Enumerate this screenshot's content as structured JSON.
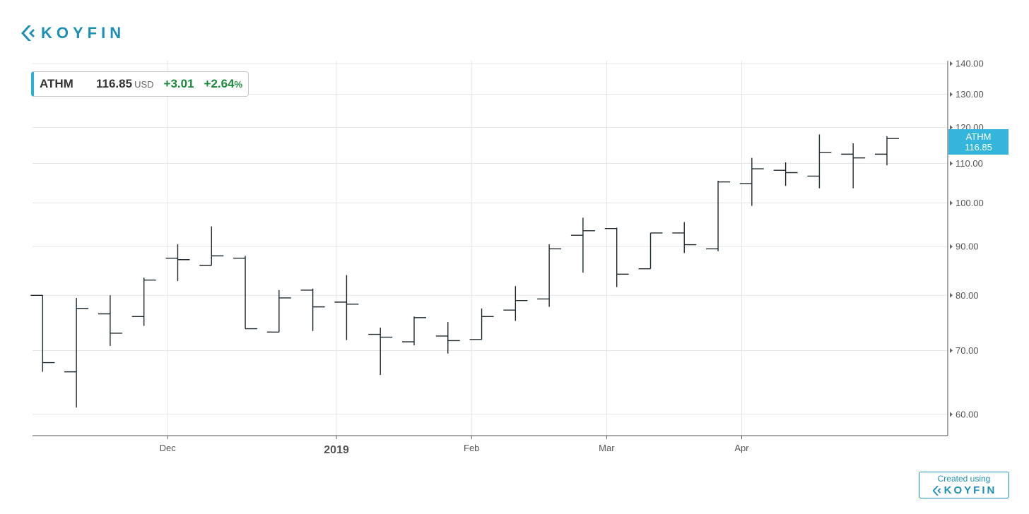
{
  "brand": {
    "name": "KOYFIN",
    "color": "#1c8fb5",
    "icon": "koyfin-chevron-icon"
  },
  "quote": {
    "symbol": "ATHM",
    "price": "116.85",
    "currency": "USD",
    "change": "+3.01",
    "change_pct": "+2.64",
    "pct_sign": "%"
  },
  "price_tag": {
    "symbol": "ATHM",
    "value": "116.85"
  },
  "footer": {
    "created_using": "Created using",
    "brand": "KOYFIN"
  },
  "colors": {
    "bars": "#1f2a30",
    "grid": "#e6e6e6",
    "accent": "#33b5dc",
    "positive": "#1c8a3c"
  },
  "chart_data": {
    "type": "ohlc",
    "frequency": "weekly",
    "y_scale": "log",
    "ylim": [
      57,
      141
    ],
    "y_ticks": [
      "60.00",
      "70.00",
      "80.00",
      "90.00",
      "100.00",
      "110.00",
      "120.00",
      "130.00",
      "140.00"
    ],
    "y_tick_values": [
      60,
      70,
      80,
      90,
      100,
      110,
      120,
      130,
      140
    ],
    "x_ticks": [
      {
        "label": "Dec",
        "x": 4.2,
        "bold": false
      },
      {
        "label": "2019",
        "x": 9.2,
        "bold": true
      },
      {
        "label": "Feb",
        "x": 13.2,
        "bold": false
      },
      {
        "label": "Mar",
        "x": 17.2,
        "bold": false
      },
      {
        "label": "Apr",
        "x": 21.2,
        "bold": false
      }
    ],
    "xlim": [
      0.2,
      27.3
    ],
    "grid": true,
    "bars": [
      {
        "o": 80,
        "h": 80,
        "l": 66.5,
        "c": 68
      },
      {
        "o": 66.5,
        "h": 79.5,
        "l": 61,
        "c": 77.5
      },
      {
        "o": 76.5,
        "h": 80,
        "l": 70.8,
        "c": 73
      },
      {
        "o": 76,
        "h": 83.5,
        "l": 74.3,
        "c": 83
      },
      {
        "o": 87.5,
        "h": 90.5,
        "l": 82.8,
        "c": 87.2
      },
      {
        "o": 86,
        "h": 94.5,
        "l": 86,
        "c": 88
      },
      {
        "o": 87.5,
        "h": 88,
        "l": 73.8,
        "c": 73.8
      },
      {
        "o": 73.2,
        "h": 81,
        "l": 73.2,
        "c": 79.5
      },
      {
        "o": 81,
        "h": 81.3,
        "l": 73.4,
        "c": 77.8
      },
      {
        "o": 78.7,
        "h": 84,
        "l": 71.8,
        "c": 78.3
      },
      {
        "o": 72.8,
        "h": 74,
        "l": 66,
        "c": 72.3
      },
      {
        "o": 71.5,
        "h": 76,
        "l": 70.9,
        "c": 75.8
      },
      {
        "o": 72.5,
        "h": 75,
        "l": 69.5,
        "c": 71.7
      },
      {
        "o": 71.9,
        "h": 77.5,
        "l": 71.9,
        "c": 76
      },
      {
        "o": 77.2,
        "h": 81.8,
        "l": 75.2,
        "c": 79
      },
      {
        "o": 79.3,
        "h": 90.5,
        "l": 77.8,
        "c": 89.5
      },
      {
        "o": 92.5,
        "h": 96.5,
        "l": 84.5,
        "c": 93.5
      },
      {
        "o": 94,
        "h": 94.2,
        "l": 81.6,
        "c": 84.2
      },
      {
        "o": 85.3,
        "h": 93,
        "l": 85.3,
        "c": 93
      },
      {
        "o": 93,
        "h": 95.5,
        "l": 88.6,
        "c": 90.4
      },
      {
        "o": 89.5,
        "h": 105.5,
        "l": 89,
        "c": 105.2
      },
      {
        "o": 104.8,
        "h": 111.5,
        "l": 99.3,
        "c": 108.6
      },
      {
        "o": 108.2,
        "h": 110.3,
        "l": 104.2,
        "c": 107.6
      },
      {
        "o": 106.7,
        "h": 118,
        "l": 103.6,
        "c": 113
      },
      {
        "o": 112.5,
        "h": 115.5,
        "l": 103.6,
        "c": 111.5
      },
      {
        "o": 112.5,
        "h": 117.5,
        "l": 109.5,
        "c": 116.85
      }
    ]
  }
}
